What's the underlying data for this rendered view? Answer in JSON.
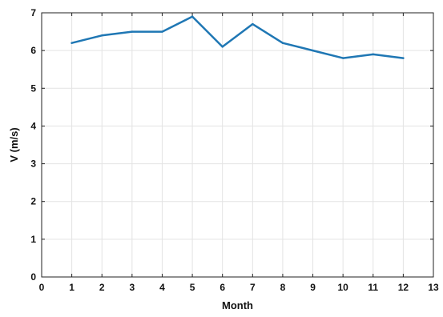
{
  "chart_data": {
    "type": "line",
    "title": "",
    "xlabel": "Month",
    "ylabel": "V (m/s)",
    "xlim": [
      0,
      13
    ],
    "ylim": [
      0,
      7
    ],
    "x_ticks": [
      0,
      1,
      2,
      3,
      4,
      5,
      6,
      7,
      8,
      9,
      10,
      11,
      12,
      13
    ],
    "y_ticks": [
      0,
      1,
      2,
      3,
      4,
      5,
      6,
      7
    ],
    "grid": true,
    "legend": "none",
    "series": [
      {
        "color": "#1f77b4",
        "x": [
          1,
          2,
          3,
          4,
          5,
          6,
          7,
          8,
          9,
          10,
          11,
          12
        ],
        "y": [
          6.2,
          6.4,
          6.5,
          6.5,
          6.9,
          6.1,
          6.7,
          6.2,
          6.0,
          5.8,
          5.9,
          5.8
        ]
      }
    ]
  }
}
